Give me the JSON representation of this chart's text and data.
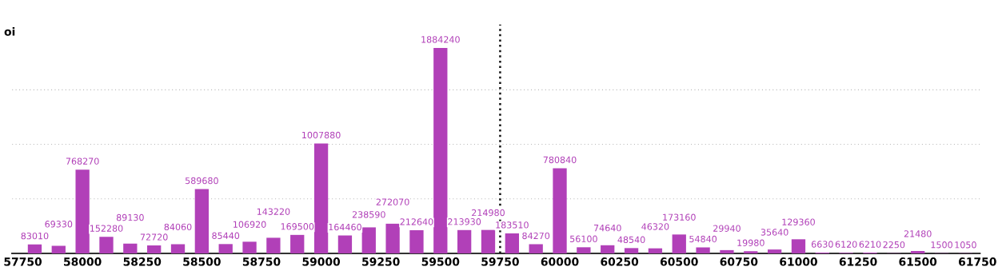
{
  "chart_data": {
    "type": "bar",
    "ylabel": "oi",
    "x": [
      57800,
      57900,
      58000,
      58100,
      58200,
      58300,
      58400,
      58500,
      58600,
      58700,
      58800,
      58900,
      59000,
      59100,
      59200,
      59300,
      59400,
      59500,
      59600,
      59700,
      59800,
      59900,
      60000,
      60100,
      60200,
      60300,
      60400,
      60500,
      60600,
      60700,
      60800,
      60900,
      61000,
      61100,
      61200,
      61300,
      61400,
      61500,
      61600,
      61700
    ],
    "values": [
      83010,
      69330,
      768270,
      152280,
      89130,
      72720,
      84060,
      589680,
      85440,
      106920,
      143220,
      169500,
      1007880,
      164460,
      238590,
      272070,
      212640,
      1884240,
      213930,
      214980,
      183510,
      84270,
      780840,
      56100,
      74640,
      48540,
      46320,
      173160,
      54840,
      29940,
      19980,
      35640,
      129360,
      6630,
      6120,
      6210,
      2250,
      21480,
      1500,
      1050
    ],
    "color": "#b140b8",
    "data_labels": true,
    "xlim": [
      57705,
      61760
    ],
    "xticks": [
      57750,
      58000,
      58250,
      58500,
      58750,
      59000,
      59250,
      59500,
      59750,
      60000,
      60250,
      60500,
      60750,
      61000,
      61250,
      61500,
      61750
    ],
    "ylim": [
      0,
      2100000
    ],
    "yticks": [
      {
        "value": 500000,
        "label": null
      },
      {
        "value": 1000000,
        "label": null
      },
      {
        "value": 1500000,
        "label": null
      }
    ],
    "tick_labels": "x",
    "grid": "y",
    "ref_lines": [
      {
        "axis": "x",
        "value": 59750,
        "line_style": "dotted",
        "color": "#111111"
      }
    ]
  }
}
